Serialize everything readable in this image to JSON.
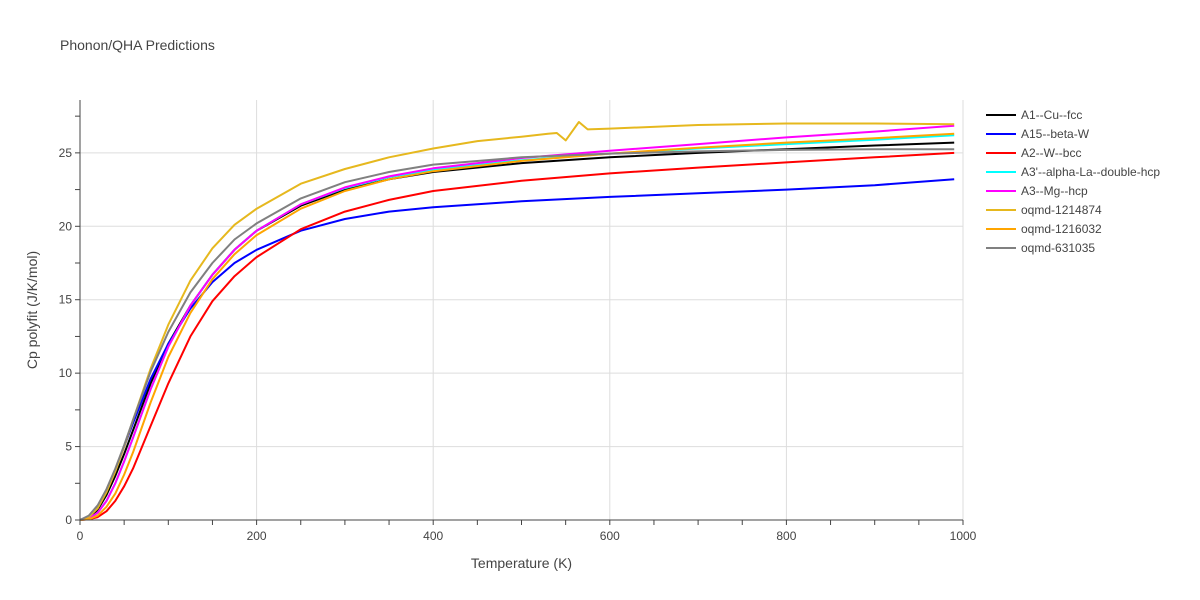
{
  "chart_data": {
    "type": "line",
    "title": "Phonon/QHA Predictions",
    "xlabel": "Temperature (K)",
    "ylabel": "Cp polyfit (J/K/mol)",
    "xlim": [
      0,
      1000
    ],
    "ylim": [
      0,
      28.6
    ],
    "x_ticks": [
      0,
      200,
      400,
      600,
      800,
      1000
    ],
    "y_ticks": [
      0,
      5,
      10,
      15,
      20,
      25
    ],
    "grid": true,
    "legend_position": "right",
    "series": [
      {
        "name": "A1--Cu--fcc",
        "color": "#000000",
        "points": [
          [
            0,
            0
          ],
          [
            10,
            0.15
          ],
          [
            20,
            0.7
          ],
          [
            30,
            1.7
          ],
          [
            40,
            3.0
          ],
          [
            50,
            4.5
          ],
          [
            60,
            6.1
          ],
          [
            80,
            9.3
          ],
          [
            100,
            12.0
          ],
          [
            125,
            14.6
          ],
          [
            150,
            16.7
          ],
          [
            175,
            18.4
          ],
          [
            200,
            19.7
          ],
          [
            250,
            21.4
          ],
          [
            300,
            22.5
          ],
          [
            350,
            23.2
          ],
          [
            400,
            23.7
          ],
          [
            500,
            24.3
          ],
          [
            600,
            24.7
          ],
          [
            700,
            25.0
          ],
          [
            800,
            25.25
          ],
          [
            900,
            25.5
          ],
          [
            990,
            25.7
          ]
        ]
      },
      {
        "name": "A15--beta-W",
        "color": "#0000ff",
        "points": [
          [
            0,
            0
          ],
          [
            10,
            0.25
          ],
          [
            20,
            0.9
          ],
          [
            30,
            2.0
          ],
          [
            40,
            3.4
          ],
          [
            50,
            5.0
          ],
          [
            60,
            6.6
          ],
          [
            80,
            9.6
          ],
          [
            100,
            12.0
          ],
          [
            125,
            14.4
          ],
          [
            150,
            16.2
          ],
          [
            175,
            17.5
          ],
          [
            200,
            18.4
          ],
          [
            250,
            19.7
          ],
          [
            300,
            20.5
          ],
          [
            350,
            21.0
          ],
          [
            400,
            21.3
          ],
          [
            500,
            21.7
          ],
          [
            600,
            22.0
          ],
          [
            700,
            22.25
          ],
          [
            800,
            22.5
          ],
          [
            900,
            22.8
          ],
          [
            990,
            23.2
          ]
        ]
      },
      {
        "name": "A2--W--bcc",
        "color": "#ff0000",
        "points": [
          [
            0,
            0
          ],
          [
            10,
            0.05
          ],
          [
            20,
            0.2
          ],
          [
            30,
            0.6
          ],
          [
            40,
            1.3
          ],
          [
            50,
            2.3
          ],
          [
            60,
            3.5
          ],
          [
            80,
            6.4
          ],
          [
            100,
            9.3
          ],
          [
            125,
            12.5
          ],
          [
            150,
            14.9
          ],
          [
            175,
            16.6
          ],
          [
            200,
            17.9
          ],
          [
            250,
            19.8
          ],
          [
            300,
            21.0
          ],
          [
            350,
            21.8
          ],
          [
            400,
            22.4
          ],
          [
            500,
            23.1
          ],
          [
            600,
            23.6
          ],
          [
            700,
            24.0
          ],
          [
            800,
            24.35
          ],
          [
            900,
            24.7
          ],
          [
            990,
            25.0
          ]
        ]
      },
      {
        "name": "A3'--alpha-La--double-hcp",
        "color": "#00ffff",
        "points": [
          [
            0,
            0
          ],
          [
            10,
            0.1
          ],
          [
            20,
            0.5
          ],
          [
            30,
            1.3
          ],
          [
            40,
            2.5
          ],
          [
            50,
            4.0
          ],
          [
            60,
            5.6
          ],
          [
            80,
            8.9
          ],
          [
            100,
            11.8
          ],
          [
            125,
            14.6
          ],
          [
            150,
            16.7
          ],
          [
            175,
            18.4
          ],
          [
            200,
            19.7
          ],
          [
            250,
            21.5
          ],
          [
            300,
            22.6
          ],
          [
            350,
            23.35
          ],
          [
            400,
            23.85
          ],
          [
            500,
            24.5
          ],
          [
            600,
            24.95
          ],
          [
            700,
            25.3
          ],
          [
            800,
            25.6
          ],
          [
            900,
            25.9
          ],
          [
            990,
            26.2
          ]
        ]
      },
      {
        "name": "A3--Mg--hcp",
        "color": "#ff00ff",
        "points": [
          [
            0,
            0
          ],
          [
            10,
            0.1
          ],
          [
            20,
            0.5
          ],
          [
            30,
            1.3
          ],
          [
            40,
            2.5
          ],
          [
            50,
            4.0
          ],
          [
            60,
            5.6
          ],
          [
            80,
            8.9
          ],
          [
            100,
            11.8
          ],
          [
            125,
            14.6
          ],
          [
            150,
            16.7
          ],
          [
            175,
            18.4
          ],
          [
            200,
            19.7
          ],
          [
            250,
            21.5
          ],
          [
            300,
            22.65
          ],
          [
            350,
            23.4
          ],
          [
            400,
            23.95
          ],
          [
            500,
            24.65
          ],
          [
            600,
            25.15
          ],
          [
            700,
            25.6
          ],
          [
            800,
            26.05
          ],
          [
            900,
            26.45
          ],
          [
            990,
            26.85
          ]
        ]
      },
      {
        "name": "oqmd-1214874",
        "color": "#e6b81e",
        "points": [
          [
            0,
            0
          ],
          [
            10,
            0.2
          ],
          [
            20,
            0.8
          ],
          [
            30,
            1.9
          ],
          [
            40,
            3.3
          ],
          [
            50,
            5.0
          ],
          [
            60,
            6.8
          ],
          [
            80,
            10.3
          ],
          [
            100,
            13.3
          ],
          [
            125,
            16.3
          ],
          [
            150,
            18.5
          ],
          [
            175,
            20.1
          ],
          [
            200,
            21.2
          ],
          [
            250,
            22.9
          ],
          [
            300,
            23.9
          ],
          [
            350,
            24.7
          ],
          [
            400,
            25.3
          ],
          [
            450,
            25.8
          ],
          [
            500,
            26.1
          ],
          [
            530,
            26.3
          ],
          [
            540,
            26.35
          ],
          [
            550,
            25.85
          ],
          [
            565,
            27.1
          ],
          [
            575,
            26.6
          ],
          [
            600,
            26.65
          ],
          [
            700,
            26.9
          ],
          [
            800,
            27.0
          ],
          [
            900,
            27.0
          ],
          [
            990,
            26.95
          ]
        ]
      },
      {
        "name": "oqmd-1216032",
        "color": "#ffa500",
        "points": [
          [
            0,
            0
          ],
          [
            10,
            0.05
          ],
          [
            20,
            0.3
          ],
          [
            30,
            0.9
          ],
          [
            40,
            1.8
          ],
          [
            50,
            3.1
          ],
          [
            60,
            4.6
          ],
          [
            80,
            8.0
          ],
          [
            100,
            11.1
          ],
          [
            125,
            14.1
          ],
          [
            150,
            16.4
          ],
          [
            175,
            18.1
          ],
          [
            200,
            19.4
          ],
          [
            250,
            21.2
          ],
          [
            300,
            22.4
          ],
          [
            350,
            23.2
          ],
          [
            400,
            23.75
          ],
          [
            500,
            24.45
          ],
          [
            600,
            24.95
          ],
          [
            700,
            25.35
          ],
          [
            800,
            25.7
          ],
          [
            900,
            26.0
          ],
          [
            990,
            26.3
          ]
        ]
      },
      {
        "name": "oqmd-631035",
        "color": "#808080",
        "points": [
          [
            0,
            0
          ],
          [
            10,
            0.3
          ],
          [
            20,
            1.0
          ],
          [
            30,
            2.1
          ],
          [
            40,
            3.5
          ],
          [
            50,
            5.1
          ],
          [
            60,
            6.8
          ],
          [
            80,
            10.1
          ],
          [
            100,
            12.8
          ],
          [
            125,
            15.5
          ],
          [
            150,
            17.5
          ],
          [
            175,
            19.1
          ],
          [
            200,
            20.2
          ],
          [
            250,
            21.9
          ],
          [
            300,
            23.0
          ],
          [
            350,
            23.7
          ],
          [
            400,
            24.2
          ],
          [
            500,
            24.7
          ],
          [
            600,
            24.95
          ],
          [
            700,
            25.1
          ],
          [
            800,
            25.2
          ],
          [
            900,
            25.25
          ],
          [
            990,
            25.25
          ]
        ]
      }
    ]
  }
}
